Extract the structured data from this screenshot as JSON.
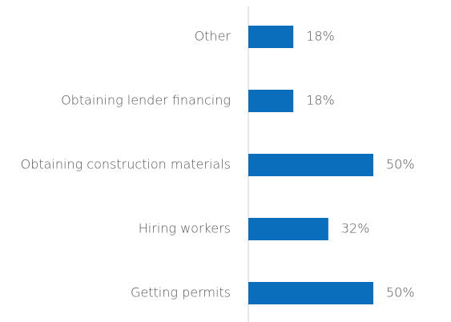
{
  "chart_data": {
    "type": "bar",
    "orientation": "horizontal",
    "categories": [
      "Other",
      "Obtaining lender financing",
      "Obtaining construction materials",
      "Hiring workers",
      "Getting permits"
    ],
    "values": [
      18,
      18,
      50,
      32,
      50
    ],
    "value_labels": [
      "18%",
      "18%",
      "50%",
      "32%",
      "50%"
    ],
    "color": "#0a6ebd"
  }
}
